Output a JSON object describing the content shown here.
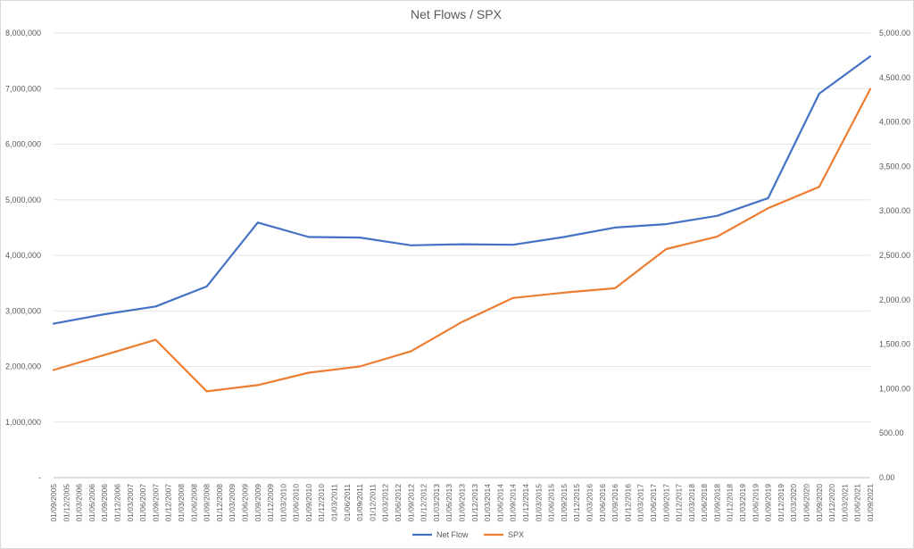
{
  "chart_data": {
    "type": "line",
    "title": "Net Flows / SPX",
    "y_left": {
      "ticks": [
        "-",
        "1,000,000",
        "2,000,000",
        "3,000,000",
        "4,000,000",
        "5,000,000",
        "6,000,000",
        "7,000,000",
        "8,000,000"
      ],
      "min": 0,
      "max": 8000000
    },
    "y_right": {
      "ticks": [
        "0.00",
        "500.00",
        "1,000.00",
        "1,500.00",
        "2,000.00",
        "2,500.00",
        "3,000.00",
        "3,500.00",
        "4,000.00",
        "4,500.00",
        "5,000.00"
      ],
      "min": 0,
      "max": 5000
    },
    "x_labels": [
      "01/09/2005",
      "01/12/2005",
      "01/03/2006",
      "01/06/2006",
      "01/09/2006",
      "01/12/2006",
      "01/03/2007",
      "01/06/2007",
      "01/09/2007",
      "01/12/2007",
      "01/03/2008",
      "01/06/2008",
      "01/09/2008",
      "01/12/2008",
      "01/03/2009",
      "01/06/2009",
      "01/09/2009",
      "01/12/2009",
      "01/03/2010",
      "01/06/2010",
      "01/09/2010",
      "01/12/2010",
      "01/03/2011",
      "01/06/2011",
      "01/09/2011",
      "01/12/2011",
      "01/03/2012",
      "01/06/2012",
      "01/09/2012",
      "01/12/2012",
      "01/03/2013",
      "01/06/2013",
      "01/09/2013",
      "01/12/2013",
      "01/03/2014",
      "01/06/2014",
      "01/09/2014",
      "01/12/2014",
      "01/03/2015",
      "01/06/2015",
      "01/09/2015",
      "01/12/2015",
      "01/03/2016",
      "01/06/2016",
      "01/09/2016",
      "01/12/2016",
      "01/03/2017",
      "01/06/2017",
      "01/09/2017",
      "01/12/2017",
      "01/03/2018",
      "01/06/2018",
      "01/09/2018",
      "01/12/2018",
      "01/03/2019",
      "01/06/2019",
      "01/09/2019",
      "01/12/2019",
      "01/03/2020",
      "01/06/2020",
      "01/09/2020",
      "01/12/2020",
      "01/03/2021",
      "01/06/2021",
      "01/09/2021"
    ],
    "series": [
      {
        "name": "Net Flow",
        "axis": "left",
        "color": "#4472c4",
        "x": [
          "01/09/2005",
          "01/09/2006",
          "01/09/2007",
          "01/09/2008",
          "01/09/2009",
          "01/09/2010",
          "01/09/2011",
          "01/09/2012",
          "01/09/2013",
          "01/09/2014",
          "01/09/2015",
          "01/09/2016",
          "01/09/2017",
          "01/09/2018",
          "01/09/2019",
          "01/09/2020",
          "01/09/2021"
        ],
        "y": [
          2770000,
          2940000,
          3080000,
          3440000,
          4590000,
          4330000,
          4320000,
          4180000,
          4200000,
          4190000,
          4330000,
          4500000,
          4560000,
          4710000,
          5030000,
          6910000,
          7580000
        ]
      },
      {
        "name": "SPX",
        "axis": "right",
        "color": "#ed7d31",
        "x": [
          "01/09/2005",
          "01/09/2006",
          "01/09/2007",
          "01/09/2008",
          "01/09/2009",
          "01/09/2010",
          "01/09/2011",
          "01/09/2012",
          "01/09/2013",
          "01/09/2014",
          "01/09/2015",
          "01/09/2016",
          "01/09/2017",
          "01/09/2018",
          "01/09/2019",
          "01/09/2020",
          "01/09/2021"
        ],
        "y": [
          1210,
          1380,
          1550,
          970,
          1040,
          1180,
          1250,
          1420,
          1750,
          2020,
          2080,
          2130,
          2570,
          2710,
          3030,
          3270,
          4370
        ]
      }
    ],
    "grid": true,
    "legend": "bottom"
  }
}
